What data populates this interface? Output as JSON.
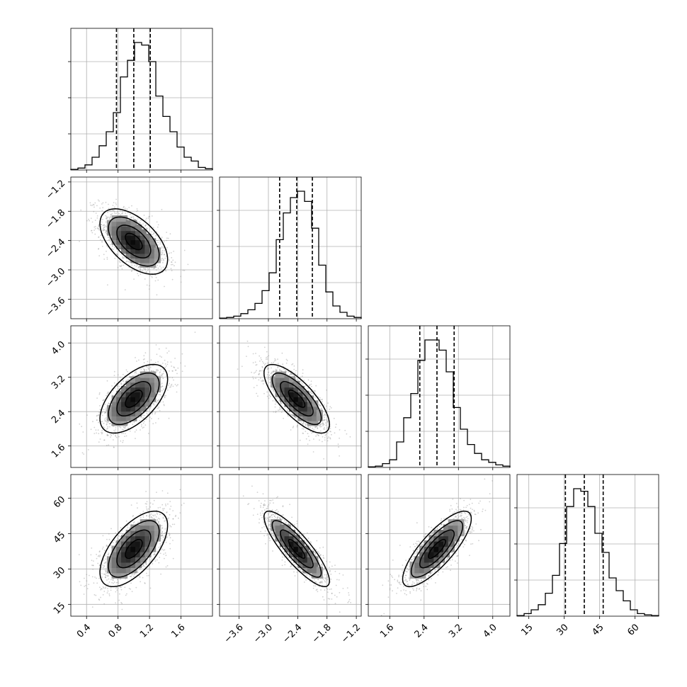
{
  "chart_data": {
    "type": "corner",
    "n_params": 4,
    "quantiles": [
      0.16,
      0.5,
      0.84
    ],
    "params": [
      {
        "range": [
          0.2,
          2.0
        ],
        "ticks": [
          0.4,
          0.8,
          1.2,
          1.6
        ],
        "tick_labels": [
          "0.4",
          "0.8",
          "1.2",
          "1.6"
        ],
        "quantile_values": [
          0.78,
          1.0,
          1.21
        ],
        "hist": [
          0.005,
          0.015,
          0.04,
          0.1,
          0.19,
          0.3,
          0.45,
          0.73,
          0.86,
          1.0,
          0.98,
          0.85,
          0.58,
          0.42,
          0.3,
          0.18,
          0.1,
          0.07,
          0.02,
          0.01
        ]
      },
      {
        "range": [
          -4.0,
          -1.1
        ],
        "ticks": [
          -3.6,
          -3.0,
          -2.4,
          -1.8,
          -1.2
        ],
        "tick_labels": [
          "−3.6",
          "−3.0",
          "−2.4",
          "−1.8",
          "−1.2"
        ],
        "quantile_values": [
          -2.77,
          -2.42,
          -2.1
        ],
        "hist": [
          0.005,
          0.01,
          0.02,
          0.04,
          0.07,
          0.12,
          0.22,
          0.36,
          0.62,
          0.83,
          0.95,
          1.0,
          0.92,
          0.71,
          0.42,
          0.21,
          0.1,
          0.05,
          0.02,
          0.01
        ]
      },
      {
        "range": [
          1.1,
          4.4
        ],
        "ticks": [
          1.6,
          2.4,
          3.2,
          4.0
        ],
        "tick_labels": [
          "1.6",
          "2.4",
          "3.2",
          "4.0"
        ],
        "quantile_values": [
          2.3,
          2.7,
          3.1
        ],
        "hist": [
          0.005,
          0.01,
          0.03,
          0.06,
          0.2,
          0.39,
          0.58,
          0.84,
          1.0,
          1.0,
          0.92,
          0.75,
          0.47,
          0.3,
          0.18,
          0.11,
          0.06,
          0.04,
          0.02,
          0.01
        ]
      },
      {
        "range": [
          10,
          70
        ],
        "ticks": [
          15,
          30,
          45,
          60
        ],
        "tick_labels": [
          "15",
          "30",
          "45",
          "60"
        ],
        "quantile_values": [
          30.5,
          38.5,
          46.5
        ],
        "hist": [
          0.005,
          0.02,
          0.05,
          0.09,
          0.18,
          0.32,
          0.57,
          0.86,
          1.0,
          0.98,
          0.86,
          0.65,
          0.5,
          0.3,
          0.2,
          0.12,
          0.05,
          0.02,
          0.01,
          0.005
        ]
      }
    ],
    "correlations": {
      "1-0": -0.55,
      "2-0": 0.58,
      "2-1": -0.75,
      "3-0": 0.62,
      "3-1": -0.85,
      "3-2": 0.8
    },
    "grid": true,
    "xlabel": "",
    "ylabel": "",
    "title": ""
  }
}
